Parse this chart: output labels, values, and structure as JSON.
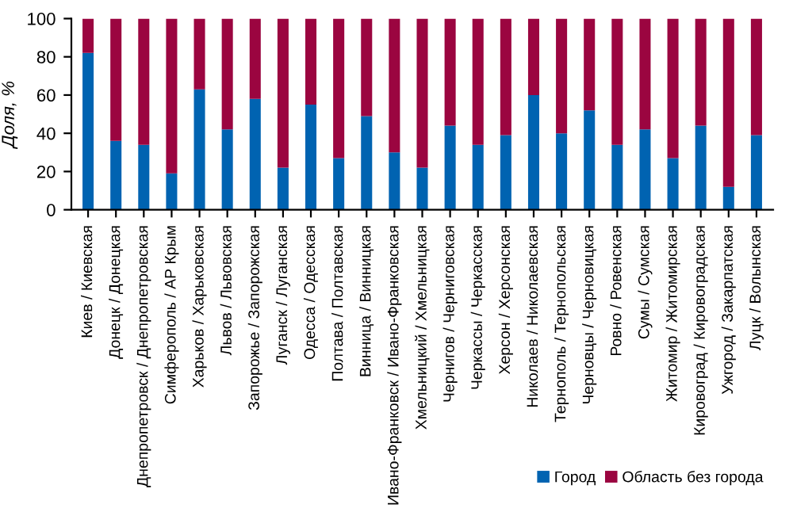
{
  "chart_data": {
    "type": "bar",
    "stacked": true,
    "ylabel": "Доля, %",
    "categories": [
      "Киев / Киевская",
      "Донецк / Донецкая",
      "Днепропетровск / Днепропетровская",
      "Симферополь / АР Крым",
      "Харьков / Харьковская",
      "Львов / Львовская",
      "Запорожье / Запорожская",
      "Луганск / Луганская",
      "Одесса / Одесская",
      "Полтава / Полтавская",
      "Винница / Винницкая",
      "Ивано-Франковск / Ивано-Франковская",
      "Хмельницкий / Хмельницкая",
      "Чернигов / Черниговская",
      "Черкассы / Черкасская",
      "Херсон / Херсонская",
      "Николаев / Николаевская",
      "Тернополь / Тернопольская",
      "Черновцы / Черновицкая",
      "Ровно / Ровенская",
      "Сумы / Сумская",
      "Житомир / Житомирская",
      "Кировоград / Кировоградская",
      "Ужгород / Закарпатская",
      "Луцк / Волынская"
    ],
    "series": [
      {
        "name": "Город",
        "color": "#0063b1",
        "values": [
          82,
          36,
          34,
          19,
          63,
          42,
          58,
          22,
          55,
          27,
          49,
          30,
          22,
          44,
          34,
          39,
          60,
          40,
          52,
          34,
          42,
          27,
          44,
          12,
          39
        ]
      },
      {
        "name": "Область без города",
        "color": "#9b0540",
        "values": [
          18,
          64,
          66,
          81,
          37,
          58,
          42,
          78,
          45,
          73,
          51,
          70,
          78,
          56,
          66,
          61,
          40,
          60,
          48,
          66,
          58,
          73,
          56,
          88,
          61
        ]
      }
    ],
    "ylim": [
      0,
      100
    ],
    "yticks": [
      0,
      20,
      40,
      60,
      80,
      100
    ],
    "grid": false,
    "legend": "bottom right"
  }
}
